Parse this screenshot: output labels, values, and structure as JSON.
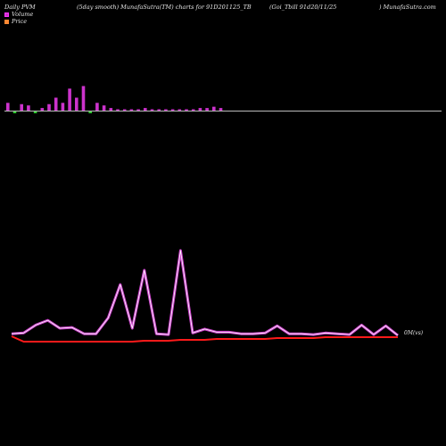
{
  "header": {
    "left": "Daily PVM",
    "center_left": "(5day smooth) MunafaSutra(TM) charts for 91D201125_TB",
    "center_right": "(Goi_Tbill 91d20/11/25",
    "right": ") MunafaSutra.com"
  },
  "legend": {
    "volume_label": "Volume",
    "price_label": "Price",
    "volume_color": "#ff33ff",
    "price_color": "#ff8833"
  },
  "colors": {
    "volume_bar_up": "#cc33cc",
    "volume_bar_down": "#33cc33",
    "baseline": "#bbbbbb",
    "volume_line_fill": "#cc44cc",
    "volume_line_stroke": "#ffffff",
    "price_line": "#ff1a1a"
  },
  "chart_data": {
    "type": "line",
    "title": "",
    "xlabel": "",
    "ylabel": "",
    "end_label": "0M(vs)",
    "volume_bars": [
      6,
      6,
      5,
      4,
      1,
      2,
      5,
      10,
      6,
      17,
      10,
      19,
      10,
      6,
      4,
      2,
      1,
      1,
      1,
      1,
      2,
      1,
      1,
      1,
      1,
      1,
      1,
      1,
      2,
      2,
      3,
      2
    ],
    "volume_bar_direction": [
      "up",
      "down",
      "up",
      "up",
      "down",
      "up",
      "up",
      "up",
      "up",
      "up",
      "up",
      "up",
      "down",
      "up",
      "up",
      "up",
      "up",
      "up",
      "up",
      "up",
      "up",
      "up",
      "up",
      "up",
      "up",
      "up",
      "up",
      "up",
      "up",
      "up",
      "up",
      "up"
    ],
    "series": [
      {
        "name": "Volume",
        "values": [
          2,
          3,
          13,
          19,
          9,
          10,
          2,
          2,
          22,
          64,
          9,
          82,
          2,
          1,
          107,
          3,
          8,
          4,
          4,
          2,
          2,
          3,
          12,
          2,
          2,
          1,
          3,
          2,
          1,
          13,
          1,
          12,
          0
        ]
      },
      {
        "name": "Price",
        "values": [
          2,
          -4,
          -4,
          -4,
          -4,
          -4,
          -4,
          -4,
          -4,
          -4,
          -4,
          -3,
          -3,
          -3,
          -2,
          -2,
          -2,
          -1,
          -1,
          -1,
          -1,
          -1,
          0,
          0,
          0,
          0,
          1,
          1,
          1,
          1,
          1,
          1,
          1
        ]
      }
    ]
  }
}
